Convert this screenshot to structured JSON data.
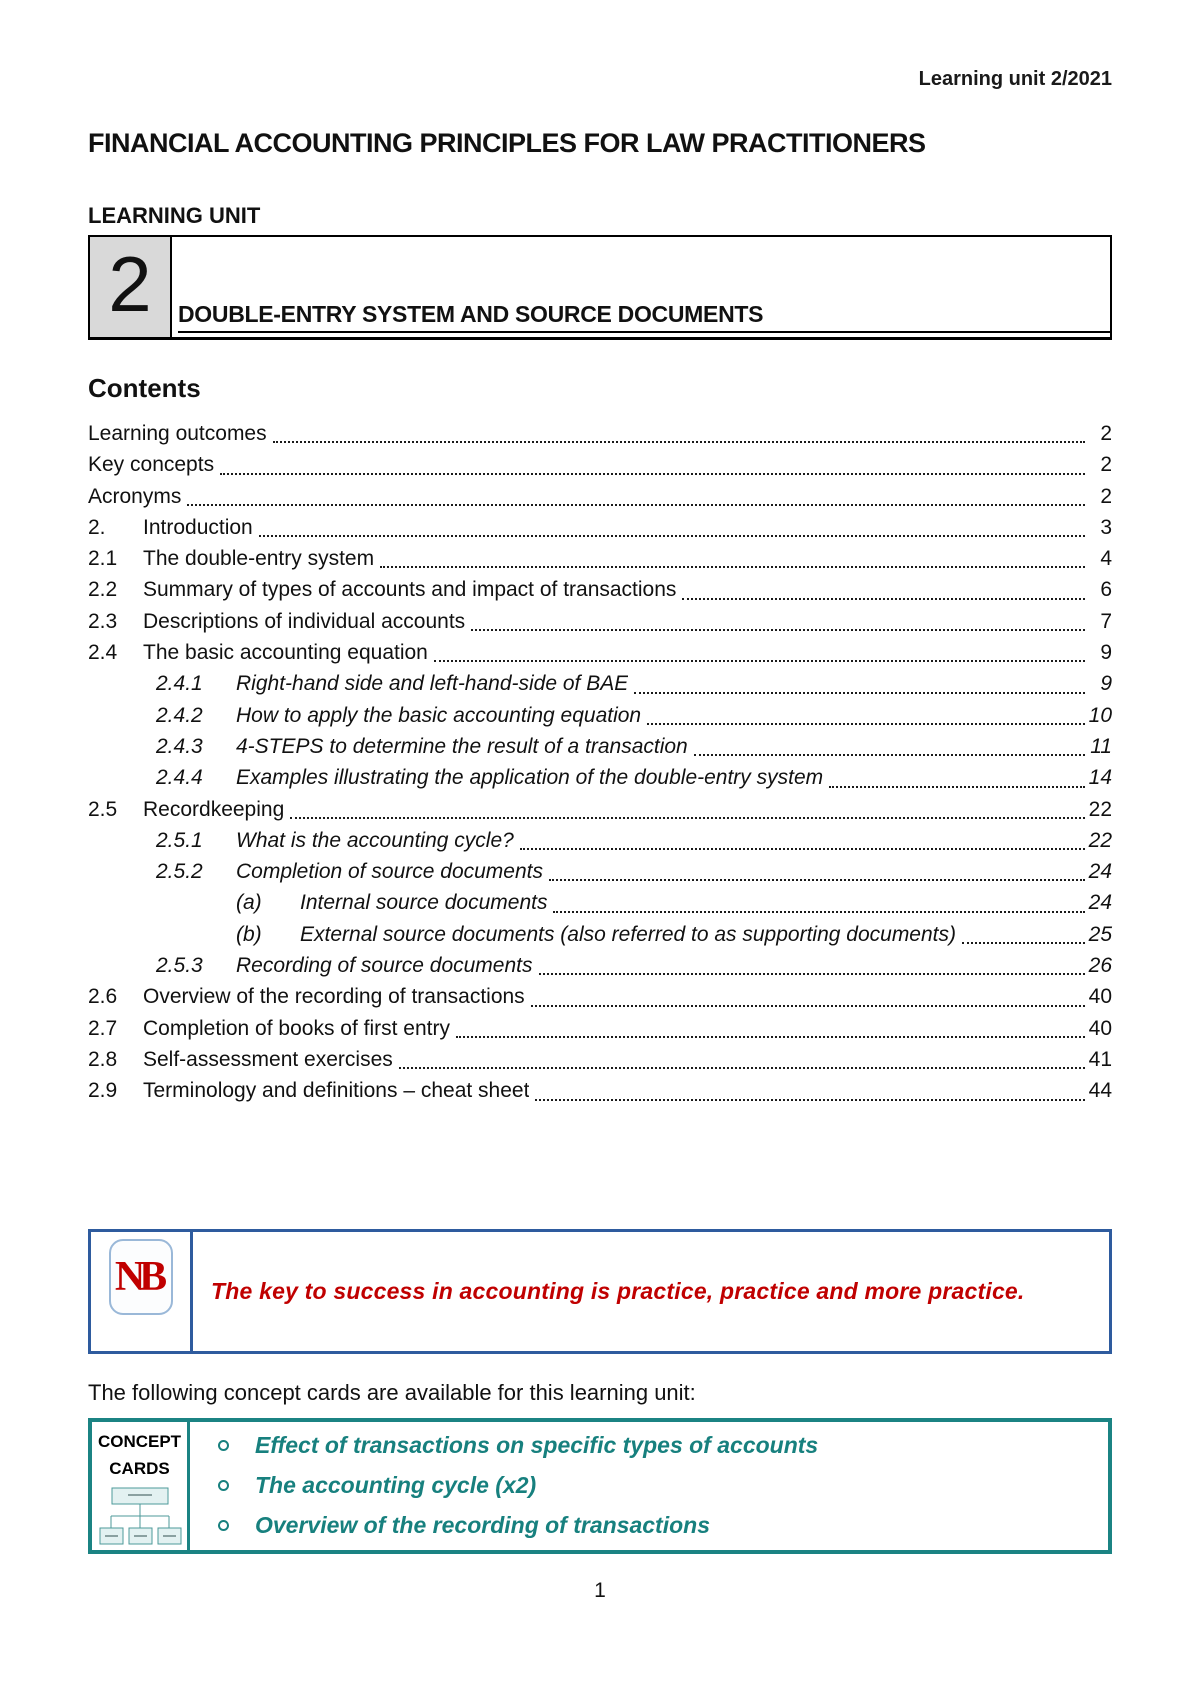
{
  "header": {
    "doc_ref": "Learning unit 2/2021"
  },
  "title": "FINANCIAL ACCOUNTING PRINCIPLES FOR LAW PRACTITIONERS",
  "unit": {
    "label": "LEARNING UNIT",
    "number": "2",
    "name": "DOUBLE-ENTRY SYSTEM AND SOURCE DOCUMENTS"
  },
  "contents": {
    "heading": "Contents",
    "entries": [
      {
        "num": "",
        "label": "Learning outcomes",
        "page": "2",
        "level": 0,
        "italic": false
      },
      {
        "num": "",
        "label": "Key concepts",
        "page": "2",
        "level": 0,
        "italic": false
      },
      {
        "num": "",
        "label": "Acronyms ",
        "page": "2",
        "level": 0,
        "italic": false
      },
      {
        "num": "2.",
        "label": "Introduction",
        "page": "3",
        "level": 1,
        "italic": false
      },
      {
        "num": "2.1",
        "label": "The double-entry system ",
        "page": "4",
        "level": 1,
        "italic": false
      },
      {
        "num": "2.2",
        "label": "Summary of types of accounts and impact of transactions ",
        "page": "6",
        "level": 1,
        "italic": false
      },
      {
        "num": "2.3",
        "label": "Descriptions of individual accounts",
        "page": "7",
        "level": 1,
        "italic": false
      },
      {
        "num": "2.4",
        "label": "The basic accounting equation ",
        "page": "9",
        "level": 1,
        "italic": false
      },
      {
        "num": "2.4.1",
        "label": "Right-hand side and left-hand-side of BAE ",
        "page": "9",
        "level": 2,
        "italic": true
      },
      {
        "num": "2.4.2",
        "label": "How to apply the basic accounting equation ",
        "page": "10",
        "level": 2,
        "italic": true
      },
      {
        "num": "2.4.3",
        "label": "4-STEPS to determine the result of a transaction ",
        "page": "11",
        "level": 2,
        "italic": true
      },
      {
        "num": "2.4.4",
        "label": " Examples illustrating the application of the double-entry system ",
        "page": "14",
        "level": 2,
        "italic": true
      },
      {
        "num": "2.5",
        "label": "Recordkeeping",
        "page": "22",
        "level": 1,
        "italic": false
      },
      {
        "num": "2.5.1",
        "label": "What is the accounting cycle?",
        "page": "22",
        "level": 2,
        "italic": true
      },
      {
        "num": "2.5.2",
        "label": "Completion of source documents",
        "page": "24",
        "level": 2,
        "italic": true
      },
      {
        "num": "(a)",
        "label": "Internal source documents",
        "page": "24",
        "level": 3,
        "italic": true
      },
      {
        "num": "(b)",
        "label": "External source documents (also referred to as supporting documents) ",
        "page": "25",
        "level": 3,
        "italic": true
      },
      {
        "num": "2.5.3",
        "label": "Recording of source documents",
        "page": "26",
        "level": 2,
        "italic": true
      },
      {
        "num": "2.6",
        "label": "Overview of the recording of transactions",
        "page": "40",
        "level": 1,
        "italic": false
      },
      {
        "num": "2.7",
        "label": "Completion of books of first entry",
        "page": "40",
        "level": 1,
        "italic": false
      },
      {
        "num": "2.8",
        "label": "Self-assessment exercises ",
        "page": "41",
        "level": 1,
        "italic": false
      },
      {
        "num": "2.9",
        "label": "Terminology and definitions – cheat sheet",
        "page": "44",
        "level": 1,
        "italic": false
      }
    ]
  },
  "nb": {
    "logo": "NB",
    "text": "The key to success in accounting is practice, practice and more practice."
  },
  "concept_intro": "The following concept cards are available for this learning unit:",
  "concept_cards": {
    "label_line1": "CONCEPT",
    "label_line2": "CARDS",
    "items": [
      "Effect of transactions on specific types of accounts",
      "The accounting cycle (x2)",
      "Overview of the recording of transactions"
    ]
  },
  "footer": {
    "page_number": "1"
  },
  "colors": {
    "nb_border": "#2e5b9e",
    "nb_text": "#c00000",
    "concept_accent": "#17807e",
    "unit_number_bg": "#d9d9d9"
  }
}
